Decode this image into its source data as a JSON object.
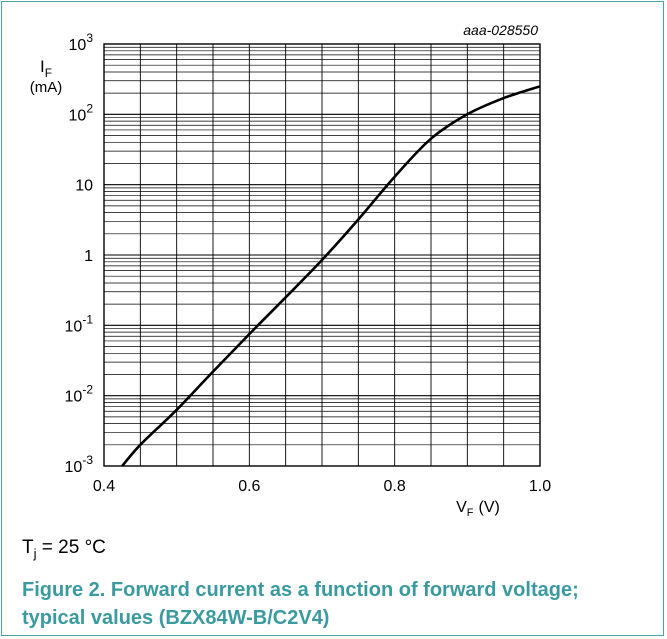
{
  "chart_data": {
    "type": "line",
    "figure_id": "aaa-028550",
    "x_axis": {
      "label": "V",
      "label_sub": "F",
      "unit": "(V)",
      "range": [
        0.4,
        1.0
      ],
      "ticks": [
        0.4,
        0.6,
        0.8,
        1.0
      ],
      "tick_labels": [
        "0.4",
        "0.6",
        "0.8",
        "1.0"
      ]
    },
    "y_axis": {
      "label": "I",
      "label_sub": "F",
      "unit": "(mA)",
      "scale": "log",
      "range": [
        0.001,
        1000
      ],
      "ticks": [
        {
          "value": 1000,
          "base": "10",
          "exp": "3"
        },
        {
          "value": 100,
          "base": "10",
          "exp": "2"
        },
        {
          "value": 10,
          "base": "10",
          "exp": ""
        },
        {
          "value": 1,
          "base": "1",
          "exp": ""
        },
        {
          "value": 0.1,
          "base": "10",
          "exp": "-1"
        },
        {
          "value": 0.01,
          "base": "10",
          "exp": "-2"
        },
        {
          "value": 0.001,
          "base": "10",
          "exp": "-3"
        }
      ]
    },
    "grid": true,
    "series": [
      {
        "x": [
          0.425,
          0.45,
          0.5,
          0.55,
          0.6,
          0.65,
          0.7,
          0.75,
          0.8,
          0.85,
          0.9,
          0.95,
          1.0
        ],
        "y": [
          0.001,
          0.002,
          0.0063,
          0.022,
          0.075,
          0.25,
          0.85,
          3.2,
          13,
          45,
          100,
          170,
          250
        ]
      }
    ]
  },
  "condition": {
    "label": "T",
    "label_sub": "j",
    "value": " = 25 °C"
  },
  "figure_caption": "Figure 2.  Forward current as a function of forward voltage; typical values (BZX84W-B/C2V4)"
}
